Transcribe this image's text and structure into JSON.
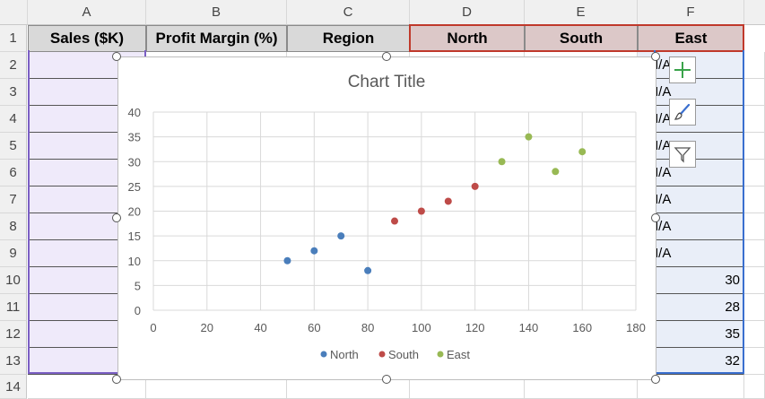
{
  "columns": [
    "A",
    "B",
    "C",
    "D",
    "E",
    "F"
  ],
  "rows": [
    "1",
    "2",
    "3",
    "4",
    "5",
    "6",
    "7",
    "8",
    "9",
    "10",
    "11",
    "12",
    "13",
    "14"
  ],
  "headers": {
    "a": "Sales ($K)",
    "b": "Profit Margin (%)",
    "c": "Region",
    "d": "North",
    "e": "South",
    "f": "East"
  },
  "column_f": [
    "#N/A",
    "#N/A",
    "#N/A",
    "#N/A",
    "#N/A",
    "#N/A",
    "#N/A",
    "#N/A",
    "30",
    "28",
    "35",
    "32"
  ],
  "colors": {
    "north": "#4a7ebb",
    "south": "#be4b48",
    "east": "#98b954",
    "gray_header": "#d9d9d9",
    "rose_header": "#dcc8c8",
    "selection_purple": "#7b5fc4",
    "selection_red": "#c0392b",
    "selection_blue": "#3a6fcf"
  },
  "chart_side_buttons": [
    "plus-icon",
    "brush-icon",
    "filter-icon"
  ],
  "chart_data": {
    "type": "scatter",
    "title": "Chart Title",
    "xlim": [
      0,
      180
    ],
    "ylim": [
      0,
      40
    ],
    "x_ticks": [
      0,
      20,
      40,
      60,
      80,
      100,
      120,
      140,
      160,
      180
    ],
    "y_ticks": [
      0,
      5,
      10,
      15,
      20,
      25,
      30,
      35,
      40
    ],
    "grid": true,
    "legend": "bottom",
    "series": [
      {
        "name": "North",
        "color": "#4a7ebb",
        "points": [
          [
            50,
            10
          ],
          [
            60,
            12
          ],
          [
            70,
            15
          ],
          [
            80,
            8
          ]
        ]
      },
      {
        "name": "South",
        "color": "#be4b48",
        "points": [
          [
            90,
            18
          ],
          [
            100,
            20
          ],
          [
            110,
            22
          ],
          [
            120,
            25
          ]
        ]
      },
      {
        "name": "East",
        "color": "#98b954",
        "points": [
          [
            130,
            30
          ],
          [
            140,
            35
          ],
          [
            150,
            28
          ],
          [
            160,
            32
          ]
        ]
      }
    ]
  }
}
